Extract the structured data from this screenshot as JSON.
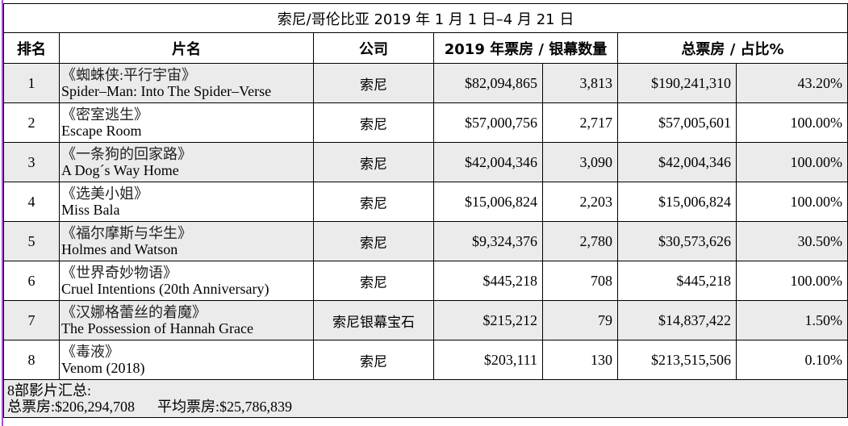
{
  "table_title": "索尼/哥伦比亚 2019 年 1 月 1 日–4 月 21 日",
  "headers": {
    "rank": "排名",
    "film": "片名",
    "company": "公司",
    "gross_screens": "2019 年票房 / 银幕数量",
    "total_share": "总票房 / 占比%"
  },
  "rows": [
    {
      "rank": "1",
      "cn": "《蜘蛛侠:平行宇宙》",
      "en": "Spider–Man: Into The Spider–Verse",
      "company": "索尼",
      "gross": "$82,094,865",
      "screens": "3,813",
      "total": "$190,241,310",
      "share": "43.20%"
    },
    {
      "rank": "2",
      "cn": "《密室逃生》",
      "en": "Escape Room",
      "company": "索尼",
      "gross": "$57,000,756",
      "screens": "2,717",
      "total": "$57,005,601",
      "share": "100.00%"
    },
    {
      "rank": "3",
      "cn": "《一条狗的回家路》",
      "en": "A Dog´s Way Home",
      "company": "索尼",
      "gross": "$42,004,346",
      "screens": "3,090",
      "total": "$42,004,346",
      "share": "100.00%"
    },
    {
      "rank": "4",
      "cn": "《选美小姐》",
      "en": "Miss Bala",
      "company": "索尼",
      "gross": "$15,006,824",
      "screens": "2,203",
      "total": "$15,006,824",
      "share": "100.00%"
    },
    {
      "rank": "5",
      "cn": "《福尔摩斯与华生》",
      "en": "Holmes and Watson",
      "company": "索尼",
      "gross": "$9,324,376",
      "screens": "2,780",
      "total": "$30,573,626",
      "share": "30.50%"
    },
    {
      "rank": "6",
      "cn": "《世界奇妙物语》",
      "en": "Cruel Intentions (20th Anniversary)",
      "company": "索尼",
      "gross": "$445,218",
      "screens": "708",
      "total": "$445,218",
      "share": "100.00%"
    },
    {
      "rank": "7",
      "cn": "《汉娜格蕾丝的着魔》",
      "en": "The Possession of Hannah Grace",
      "company": "索尼银幕宝石",
      "gross": "$215,212",
      "screens": "79",
      "total": "$14,837,422",
      "share": "1.50%"
    },
    {
      "rank": "8",
      "cn": "《毒液》",
      "en": "Venom (2018)",
      "company": "索尼",
      "gross": "$203,111",
      "screens": "130",
      "total": "$213,515,506",
      "share": "0.10%"
    }
  ],
  "summary": {
    "line1": "8部影片汇总:",
    "total": "总票房:$206,294,708",
    "average": "平均票房:$25,786,839"
  },
  "colors": {
    "row_alt": "#ebebeb",
    "left_edge": "#a64dd6"
  }
}
